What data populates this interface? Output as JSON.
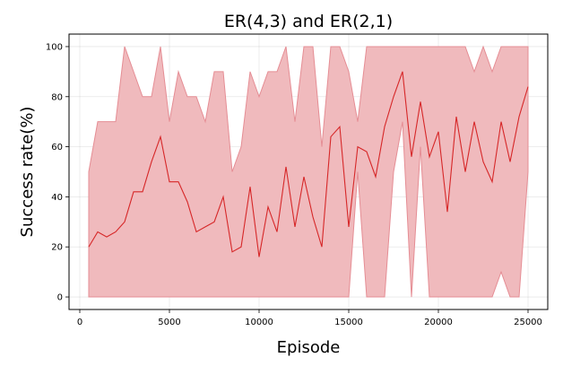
{
  "chart_data": {
    "type": "line",
    "title": "ER(4,3) and ER(2,1)",
    "xlabel": "Episode",
    "ylabel": "Success rate(%)",
    "xlim": [
      -600,
      26100
    ],
    "ylim": [
      -5,
      105
    ],
    "xticks": [
      0,
      5000,
      10000,
      15000,
      20000,
      25000
    ],
    "yticks": [
      0,
      20,
      40,
      60,
      80,
      100
    ],
    "grid": true,
    "colors": {
      "line": "#d62728",
      "band": "#f0babd",
      "band_edge": "#e58d94"
    },
    "x": [
      500,
      1000,
      1500,
      2000,
      2500,
      3000,
      3500,
      4000,
      4500,
      5000,
      5500,
      6000,
      6500,
      7000,
      7500,
      8000,
      8500,
      9000,
      9500,
      10000,
      10500,
      11000,
      11500,
      12000,
      12500,
      13000,
      13500,
      14000,
      14500,
      15000,
      15500,
      16000,
      16500,
      17000,
      17500,
      18000,
      18500,
      19000,
      19500,
      20000,
      20500,
      21000,
      21500,
      22000,
      22500,
      23000,
      23500,
      24000,
      24500,
      25000
    ],
    "series": [
      {
        "values": [
          20,
          26,
          24,
          26,
          30,
          42,
          42,
          54,
          64,
          46,
          46,
          38,
          26,
          28,
          30,
          40,
          18,
          20,
          44,
          16,
          36,
          26,
          52,
          28,
          48,
          32,
          20,
          64,
          68,
          28,
          60,
          58,
          48,
          68,
          80,
          90,
          56,
          78,
          56,
          66,
          34,
          72,
          50,
          70,
          54,
          46,
          70,
          54,
          72,
          84
        ],
        "lower": [
          0,
          0,
          0,
          0,
          0,
          0,
          0,
          0,
          0,
          0,
          0,
          0,
          0,
          0,
          0,
          0,
          0,
          0,
          0,
          0,
          0,
          0,
          0,
          0,
          0,
          0,
          0,
          0,
          0,
          0,
          50,
          0,
          0,
          0,
          50,
          70,
          0,
          60,
          0,
          0,
          0,
          0,
          0,
          0,
          0,
          0,
          10,
          0,
          0,
          50
        ],
        "upper": [
          50,
          70,
          70,
          70,
          100,
          90,
          80,
          80,
          100,
          70,
          90,
          80,
          80,
          70,
          90,
          90,
          50,
          60,
          90,
          80,
          90,
          90,
          100,
          70,
          100,
          100,
          60,
          100,
          100,
          90,
          70,
          100,
          100,
          100,
          100,
          100,
          100,
          100,
          100,
          100,
          100,
          100,
          100,
          90,
          100,
          90,
          100,
          100,
          100,
          100
        ]
      }
    ]
  }
}
